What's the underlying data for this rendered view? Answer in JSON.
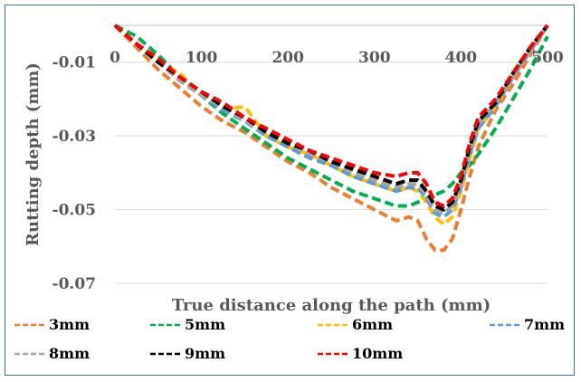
{
  "chart_data": {
    "type": "line",
    "title": "",
    "xlabel": "True distance along the path (mm)",
    "ylabel": "Rutting depth (mm)",
    "xlim": [
      0,
      500
    ],
    "ylim": [
      -0.07,
      0.0
    ],
    "x_ticks": [
      0,
      100,
      200,
      300,
      400,
      500
    ],
    "x_tick_labels": [
      "0",
      "100",
      "200",
      "300",
      "400",
      "500"
    ],
    "y_ticks": [
      -0.01,
      -0.03,
      -0.05,
      -0.07
    ],
    "y_tick_labels": [
      "-0.01",
      "-0.03",
      "-0.05",
      "-0.07"
    ],
    "grid": "horizontal",
    "legend_position": "bottom",
    "x": [
      0,
      25,
      50,
      75,
      100,
      125,
      150,
      175,
      200,
      225,
      250,
      275,
      300,
      325,
      340,
      350,
      360,
      370,
      380,
      390,
      400,
      410,
      420,
      440,
      460,
      480,
      500
    ],
    "series": [
      {
        "name": "3mm",
        "color": "#ed7d31",
        "values": [
          0.0,
          -0.006,
          -0.012,
          -0.017,
          -0.022,
          -0.026,
          -0.029,
          -0.033,
          -0.037,
          -0.04,
          -0.044,
          -0.047,
          -0.05,
          -0.053,
          -0.052,
          -0.053,
          -0.058,
          -0.061,
          -0.061,
          -0.058,
          -0.05,
          -0.041,
          -0.033,
          -0.023,
          -0.016,
          -0.008,
          0.0
        ]
      },
      {
        "name": "5mm",
        "color": "#00b050",
        "values": [
          0.0,
          -0.003,
          -0.008,
          -0.014,
          -0.019,
          -0.024,
          -0.028,
          -0.032,
          -0.036,
          -0.039,
          -0.042,
          -0.045,
          -0.047,
          -0.049,
          -0.049,
          -0.048,
          -0.047,
          -0.046,
          -0.045,
          -0.043,
          -0.04,
          -0.038,
          -0.035,
          -0.028,
          -0.02,
          -0.012,
          -0.003
        ]
      },
      {
        "name": "6mm",
        "color": "#ffc000",
        "values": [
          0.0,
          -0.005,
          -0.01,
          -0.013,
          -0.019,
          -0.023,
          -0.022,
          -0.03,
          -0.033,
          -0.035,
          -0.038,
          -0.041,
          -0.043,
          -0.045,
          -0.044,
          -0.045,
          -0.048,
          -0.052,
          -0.054,
          -0.052,
          -0.045,
          -0.036,
          -0.028,
          -0.022,
          -0.014,
          -0.007,
          0.0
        ]
      },
      {
        "name": "7mm",
        "color": "#5b9bd5",
        "values": [
          0.0,
          -0.005,
          -0.01,
          -0.015,
          -0.019,
          -0.023,
          -0.026,
          -0.03,
          -0.033,
          -0.036,
          -0.038,
          -0.041,
          -0.043,
          -0.045,
          -0.044,
          -0.044,
          -0.047,
          -0.051,
          -0.052,
          -0.05,
          -0.044,
          -0.035,
          -0.028,
          -0.022,
          -0.014,
          -0.007,
          0.0
        ]
      },
      {
        "name": "8mm",
        "color": "#a5a5a5",
        "values": [
          0.0,
          -0.005,
          -0.01,
          -0.015,
          -0.019,
          -0.022,
          -0.026,
          -0.029,
          -0.032,
          -0.035,
          -0.037,
          -0.04,
          -0.042,
          -0.044,
          -0.043,
          -0.043,
          -0.046,
          -0.05,
          -0.051,
          -0.049,
          -0.043,
          -0.034,
          -0.027,
          -0.021,
          -0.014,
          -0.007,
          0.0
        ]
      },
      {
        "name": "9mm",
        "color": "#000000",
        "values": [
          0.0,
          -0.005,
          -0.01,
          -0.014,
          -0.018,
          -0.022,
          -0.025,
          -0.029,
          -0.032,
          -0.034,
          -0.037,
          -0.039,
          -0.041,
          -0.043,
          -0.042,
          -0.042,
          -0.045,
          -0.049,
          -0.05,
          -0.048,
          -0.042,
          -0.033,
          -0.026,
          -0.021,
          -0.013,
          -0.006,
          0.0
        ]
      },
      {
        "name": "10mm",
        "color": "#ff0000",
        "values": [
          0.0,
          -0.005,
          -0.009,
          -0.014,
          -0.018,
          -0.021,
          -0.025,
          -0.028,
          -0.031,
          -0.034,
          -0.036,
          -0.038,
          -0.04,
          -0.041,
          -0.04,
          -0.04,
          -0.043,
          -0.048,
          -0.049,
          -0.047,
          -0.041,
          -0.032,
          -0.025,
          -0.02,
          -0.013,
          -0.006,
          0.0
        ]
      }
    ]
  }
}
